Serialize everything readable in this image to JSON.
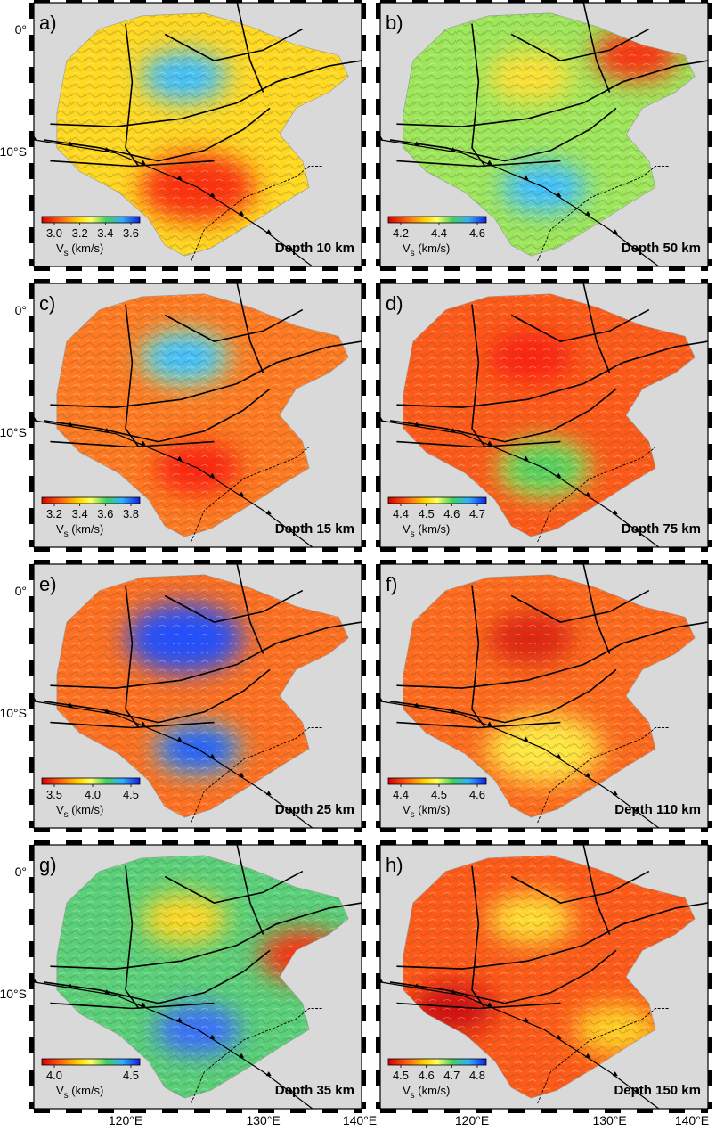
{
  "figure": {
    "lat_labels": [
      "0°",
      "10°S"
    ],
    "lon_labels": [
      "120°E",
      "130°E",
      "140°E"
    ],
    "colorbar_title_main": "V",
    "colorbar_title_sub": "s",
    "colorbar_title_unit": " (km/s)",
    "colors": {
      "background": "#d9d9d9",
      "land_shade": "#8a8a8a",
      "structure_line": "#000000"
    }
  },
  "panels": [
    {
      "letter": "a)",
      "depth_label": "Depth 10 km",
      "colorbar_ticks": [
        "3.0",
        "3.2",
        "3.4",
        "3.6"
      ],
      "dominant_color": "#ffd820",
      "anomalies": [
        {
          "color": "#ff3010",
          "strength": "strong",
          "location": "south-center"
        },
        {
          "color": "#40c0ff",
          "strength": "moderate",
          "location": "north-center"
        }
      ]
    },
    {
      "letter": "b)",
      "depth_label": "Depth 50 km",
      "colorbar_ticks": [
        "4.2",
        "4.4",
        "4.6"
      ],
      "dominant_color": "#9ee65a",
      "anomalies": [
        {
          "color": "#ff3010",
          "strength": "moderate",
          "location": "north-east"
        },
        {
          "color": "#ffe030",
          "strength": "moderate",
          "location": "north-center"
        },
        {
          "color": "#40c0ff",
          "strength": "moderate",
          "location": "south-center"
        }
      ]
    },
    {
      "letter": "c)",
      "depth_label": "Depth 15 km",
      "colorbar_ticks": [
        "3.2",
        "3.4",
        "3.6",
        "3.8"
      ],
      "dominant_color": "#ff7a20",
      "anomalies": [
        {
          "color": "#ffe030",
          "strength": "moderate",
          "location": "north-center"
        },
        {
          "color": "#40c0ff",
          "strength": "moderate",
          "location": "north-center"
        },
        {
          "color": "#ff2010",
          "strength": "moderate",
          "location": "south-center"
        }
      ]
    },
    {
      "letter": "d)",
      "depth_label": "Depth 75 km",
      "colorbar_ticks": [
        "4.4",
        "4.5",
        "4.6",
        "4.7"
      ],
      "dominant_color": "#ff5a18",
      "anomalies": [
        {
          "color": "#ffe030",
          "strength": "moderate",
          "location": "south-center"
        },
        {
          "color": "#50d060",
          "strength": "moderate",
          "location": "south-center"
        },
        {
          "color": "#ff2010",
          "strength": "moderate",
          "location": "north-center"
        }
      ]
    },
    {
      "letter": "e)",
      "depth_label": "Depth 25 km",
      "colorbar_ticks": [
        "3.5",
        "4.0",
        "4.5"
      ],
      "dominant_color": "#ff7020",
      "anomalies": [
        {
          "color": "#2050ff",
          "strength": "strong",
          "location": "north-center"
        },
        {
          "color": "#ffe030",
          "strength": "moderate",
          "location": "south-center"
        },
        {
          "color": "#2060ff",
          "strength": "moderate",
          "location": "south-center"
        }
      ]
    },
    {
      "letter": "f)",
      "depth_label": "Depth 110 km",
      "colorbar_ticks": [
        "4.4",
        "4.5",
        "4.6"
      ],
      "dominant_color": "#ff6a1c",
      "anomalies": [
        {
          "color": "#ffe840",
          "strength": "strong",
          "location": "south-center"
        },
        {
          "color": "#e02010",
          "strength": "moderate",
          "location": "north-center"
        }
      ]
    },
    {
      "letter": "g)",
      "depth_label": "Depth 35 km",
      "colorbar_ticks": [
        "4.0",
        "4.5"
      ],
      "dominant_color": "#5ad078",
      "anomalies": [
        {
          "color": "#ff3010",
          "strength": "moderate",
          "location": "east"
        },
        {
          "color": "#3a70ff",
          "strength": "moderate",
          "location": "south-center"
        },
        {
          "color": "#ffd820",
          "strength": "moderate",
          "location": "north-center"
        }
      ]
    },
    {
      "letter": "h)",
      "depth_label": "Depth 150 km",
      "colorbar_ticks": [
        "4.5",
        "4.6",
        "4.7",
        "4.8"
      ],
      "dominant_color": "#ff5a18",
      "anomalies": [
        {
          "color": "#ffe030",
          "strength": "moderate",
          "location": "north-center"
        },
        {
          "color": "#d01010",
          "strength": "moderate",
          "location": "south-west"
        },
        {
          "color": "#ffd020",
          "strength": "moderate",
          "location": "south-east"
        }
      ]
    }
  ]
}
